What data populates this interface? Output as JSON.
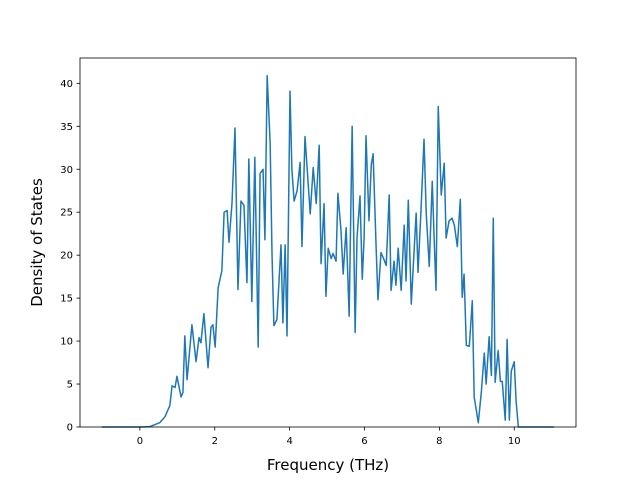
{
  "chart_data": {
    "type": "line",
    "x_label": "Frequency (THz)",
    "y_label": "Density of States",
    "color": "#1f77b4",
    "xlim": [
      -1.6,
      11.65
    ],
    "ylim": [
      0,
      42.95
    ],
    "xticks": [
      0,
      2,
      4,
      6,
      8,
      10
    ],
    "yticks": [
      0,
      5,
      10,
      15,
      20,
      25,
      30,
      35,
      40
    ],
    "grid": false,
    "x": [
      -1.0,
      0,
      0.27,
      0.53,
      0.67,
      0.8,
      0.86,
      0.94,
      0.99,
      1.1,
      1.15,
      1.2,
      1.26,
      1.39,
      1.5,
      1.58,
      1.63,
      1.71,
      1.82,
      1.9,
      1.95,
      2.01,
      2.09,
      2.19,
      2.25,
      2.33,
      2.38,
      2.46,
      2.54,
      2.62,
      2.7,
      2.78,
      2.86,
      2.91,
      2.99,
      3.07,
      3.16,
      3.21,
      3.29,
      3.34,
      3.4,
      3.48,
      3.53,
      3.58,
      3.66,
      3.77,
      3.82,
      3.88,
      3.93,
      4.01,
      4.06,
      4.12,
      4.2,
      4.28,
      4.33,
      4.41,
      4.47,
      4.55,
      4.63,
      4.71,
      4.79,
      4.84,
      4.92,
      4.97,
      5.03,
      5.11,
      5.16,
      5.24,
      5.29,
      5.37,
      5.43,
      5.51,
      5.59,
      5.67,
      5.75,
      5.8,
      5.88,
      5.94,
      5.99,
      6.04,
      6.12,
      6.18,
      6.23,
      6.31,
      6.36,
      6.44,
      6.52,
      6.58,
      6.66,
      6.71,
      6.79,
      6.84,
      6.9,
      6.98,
      7.06,
      7.11,
      7.17,
      7.25,
      7.3,
      7.38,
      7.43,
      7.51,
      7.59,
      7.65,
      7.73,
      7.81,
      7.86,
      7.91,
      7.97,
      8.05,
      8.13,
      8.18,
      8.26,
      8.34,
      8.4,
      8.48,
      8.56,
      8.61,
      8.66,
      8.72,
      8.8,
      8.88,
      8.93,
      9.04,
      9.12,
      9.2,
      9.25,
      9.33,
      9.39,
      9.44,
      9.49,
      9.57,
      9.63,
      9.68,
      9.76,
      9.81,
      9.87,
      9.92,
      10.0,
      10.05,
      10.11,
      11.04
    ],
    "values": [
      0,
      0,
      0.05,
      0.5,
      1.2,
      2.5,
      4.8,
      4.6,
      5.9,
      3.5,
      4.0,
      10.6,
      5.5,
      11.9,
      7.6,
      10.4,
      9.8,
      13.2,
      6.9,
      11.6,
      11.9,
      9.3,
      16.2,
      18.2,
      25,
      25.2,
      21.5,
      26,
      34.8,
      16,
      26.3,
      25.8,
      16.8,
      31.2,
      14.6,
      31.4,
      9.3,
      29.5,
      30,
      21.8,
      40.9,
      33,
      20,
      11.8,
      12.5,
      21.2,
      12.1,
      21.2,
      10.6,
      39.1,
      30,
      26.3,
      27.5,
      30.8,
      21,
      33.8,
      30,
      24.8,
      30.2,
      26,
      32.8,
      19,
      26,
      15.2,
      20.8,
      19.6,
      20.2,
      19.3,
      27.2,
      23,
      17.8,
      23.2,
      12.9,
      35,
      11,
      22,
      26.9,
      17.2,
      22,
      33.9,
      24,
      30.5,
      31.8,
      21,
      14.8,
      20.3,
      19.5,
      18.8,
      27,
      15.9,
      19.3,
      16.5,
      20.8,
      15.9,
      23.5,
      17,
      26.4,
      14.3,
      18.5,
      24.9,
      18,
      25.3,
      33.5,
      24.8,
      18.7,
      28.6,
      22,
      15.9,
      37.3,
      27,
      30.7,
      22,
      24,
      24.3,
      23.5,
      21,
      26.5,
      15.1,
      17.8,
      9.5,
      9.4,
      14.7,
      3.5,
      0.5,
      4,
      8.6,
      5,
      10.5,
      6,
      24.3,
      5.2,
      8.9,
      5.3,
      5.3,
      0.8,
      10.2,
      0.8,
      6.5,
      7.6,
      3,
      0,
      0
    ]
  }
}
